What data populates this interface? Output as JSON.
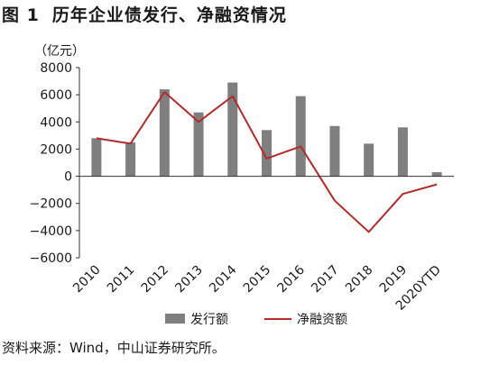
{
  "figure": {
    "label": "图 1",
    "title": "历年企业债发行、净融资情况"
  },
  "source": "资料来源：Wind，中山证券研究所。",
  "chart_data": {
    "type": "bar",
    "title": "历年企业债发行、净融资情况",
    "unit_label": "（亿元）",
    "categories": [
      "2010",
      "2011",
      "2012",
      "2013",
      "2014",
      "2015",
      "2016",
      "2017",
      "2018",
      "2019",
      "2020YTD"
    ],
    "series": [
      {
        "name": "发行额",
        "type": "bar",
        "color": "#7f7f7f",
        "values": [
          2800,
          2500,
          6400,
          4700,
          6900,
          3400,
          5900,
          3700,
          2400,
          3600,
          300
        ]
      },
      {
        "name": "净融资额",
        "type": "line",
        "color": "#b22b2b",
        "values": [
          2800,
          2400,
          6200,
          4000,
          5900,
          1300,
          2200,
          -1800,
          -4100,
          -1300,
          -600
        ]
      }
    ],
    "yticks": [
      8000,
      6000,
      4000,
      2000,
      0,
      -2000,
      -4000,
      -6000
    ],
    "ylim": [
      -6000,
      8000
    ],
    "grid": false,
    "legend_position": "bottom"
  }
}
